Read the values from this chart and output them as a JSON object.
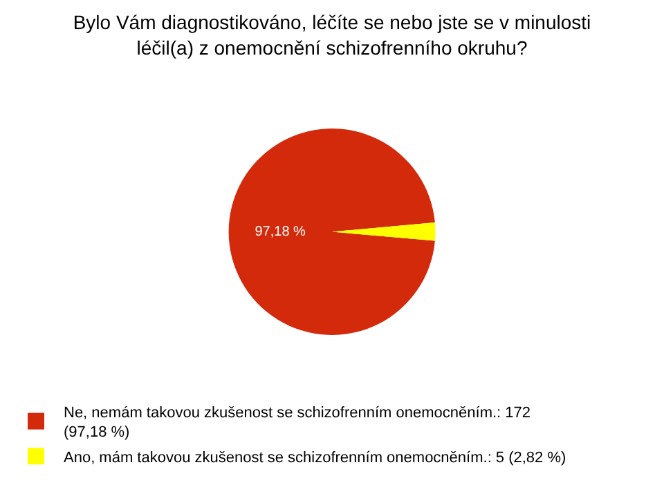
{
  "chart_data": {
    "type": "pie",
    "title": "Bylo Vám diagnostikováno, léčíte se nebo jste se v minulosti léčil(a) z onemocnění schizofrenního okruhu?",
    "categories": [
      "Ne, nemám takovou zkušenost se schizofrenním onemocněním.: 172 (97,18 %)",
      "Ano, mám takovou zkušenost se schizofrenním onemocněním.: 5 (2,82 %)"
    ],
    "values": [
      97.18,
      2.82
    ],
    "colors": [
      "#d42a0c",
      "#ffff00"
    ],
    "value_labels": [
      "97,18 %",
      null
    ],
    "legend": "bottom"
  }
}
